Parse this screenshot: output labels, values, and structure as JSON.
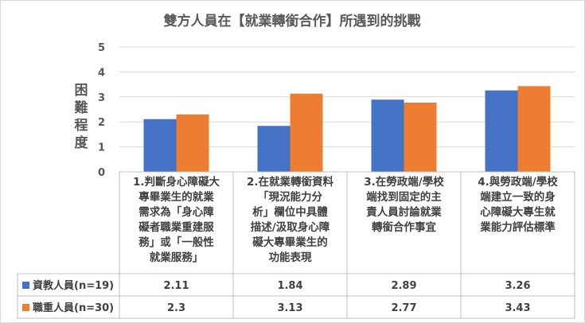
{
  "chart_data": {
    "type": "bar",
    "title": "雙方人員在【就業轉銜合作】所遇到的挑戰",
    "ylabel": "困難程度",
    "ylim": [
      0,
      5
    ],
    "yticks": [
      "0",
      "1",
      "2",
      "3",
      "4",
      "5"
    ],
    "grid": true,
    "legend": "data-table",
    "categories": [
      [
        "1.判斷身心障礙大",
        "專畢業生的就業",
        "需求為「身心障",
        "礙者職業重建服",
        "務」或「一般性",
        "就業服務」"
      ],
      [
        "2.在就業轉銜資料",
        "「現況能力分",
        "析」欄位中具體",
        "描述/汲取身心障",
        "礙大專畢業生的",
        "功能表現"
      ],
      [
        "3.在勞政端/學校",
        "端找到固定的主",
        "責人員討論就業",
        "轉銜合作事宜"
      ],
      [
        "4.與勞政端/學校",
        "端建立一致的身",
        "心障礙大專生就",
        "業能力評估標準"
      ]
    ],
    "series": [
      {
        "name": "資教人員(n=19)",
        "color": "#4472c4",
        "values": [
          2.11,
          1.84,
          2.89,
          3.26
        ],
        "labels": [
          "2.11",
          "1.84",
          "2.89",
          "3.26"
        ]
      },
      {
        "name": "職重人員(n=30)",
        "color": "#ed7d31",
        "values": [
          2.3,
          3.13,
          2.77,
          3.43
        ],
        "labels": [
          "2.3",
          "3.13",
          "2.77",
          "3.43"
        ]
      }
    ]
  }
}
